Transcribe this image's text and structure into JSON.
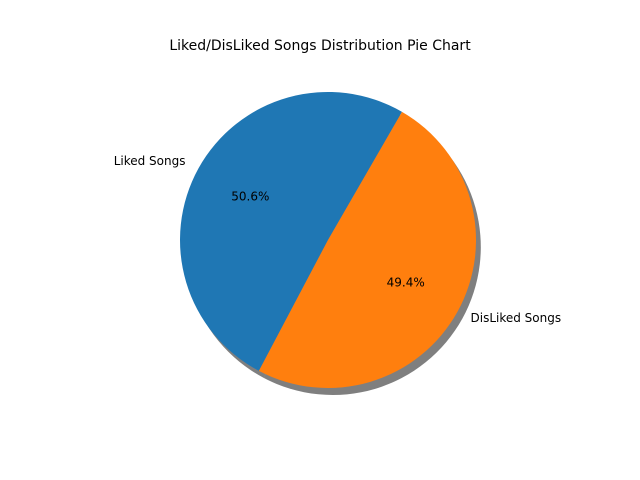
{
  "chart_data": {
    "type": "pie",
    "title": "Liked/DisLiked Songs Distribution Pie Chart",
    "labels": [
      "Liked Songs",
      "DisLiked Songs"
    ],
    "values": [
      50.6,
      49.4
    ],
    "percent_labels": [
      "50.6%",
      "49.4%"
    ],
    "colors": [
      "#1f77b4",
      "#ff7f0e"
    ],
    "start_angle_deg": 60,
    "shadow": true,
    "legend": "none"
  }
}
